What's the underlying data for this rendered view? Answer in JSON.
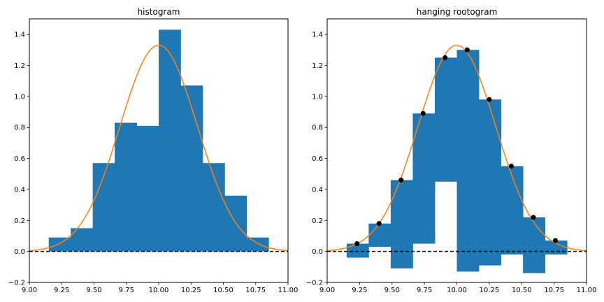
{
  "chart_data": [
    {
      "type": "bar",
      "title": "histogram",
      "xlim": [
        9.0,
        11.0
      ],
      "ylim": [
        -0.2,
        1.5
      ],
      "xticks": [
        9.0,
        9.25,
        9.5,
        9.75,
        10.0,
        10.25,
        10.5,
        10.75,
        11.0
      ],
      "xtick_labels": [
        "9.00",
        "9.25",
        "9.50",
        "9.75",
        "10.00",
        "10.25",
        "10.50",
        "10.75",
        "11.00"
      ],
      "yticks": [
        -0.2,
        0.0,
        0.2,
        0.4,
        0.6,
        0.8,
        1.0,
        1.2,
        1.4
      ],
      "ytick_labels": [
        "−0.2",
        "0.0",
        "0.2",
        "0.4",
        "0.6",
        "0.8",
        "1.0",
        "1.2",
        "1.4"
      ],
      "bin_edges": [
        9.15,
        9.32,
        9.49,
        9.66,
        9.83,
        10.0,
        10.17,
        10.34,
        10.51,
        10.68,
        10.85
      ],
      "values": [
        0.09,
        0.15,
        0.57,
        0.83,
        0.81,
        1.43,
        1.07,
        0.57,
        0.36,
        0.09
      ],
      "bar_color": "#1f77b4",
      "curve": {
        "type": "gaussian",
        "mean": 10.0,
        "std": 0.3,
        "amplitude": 1.33,
        "color": "#ff7f0e"
      },
      "reference_line": {
        "y": 0.0,
        "style": "dashed",
        "color": "#000000"
      }
    },
    {
      "type": "bar",
      "title": "hanging rootogram",
      "xlim": [
        9.0,
        11.0
      ],
      "ylim": [
        -0.2,
        1.5
      ],
      "xticks": [
        9.0,
        9.25,
        9.5,
        9.75,
        10.0,
        10.25,
        10.5,
        10.75,
        11.0
      ],
      "xtick_labels": [
        "9.00",
        "9.25",
        "9.50",
        "9.75",
        "10.00",
        "10.25",
        "10.50",
        "10.75",
        "11.00"
      ],
      "yticks": [
        -0.2,
        0.0,
        0.2,
        0.4,
        0.6,
        0.8,
        1.0,
        1.2,
        1.4
      ],
      "ytick_labels": [
        "−0.2",
        "0.0",
        "0.2",
        "0.4",
        "0.6",
        "0.8",
        "1.0",
        "1.2",
        "1.4"
      ],
      "bin_edges": [
        9.15,
        9.32,
        9.49,
        9.66,
        9.83,
        10.0,
        10.17,
        10.34,
        10.51,
        10.68,
        10.85
      ],
      "bar_tops": [
        0.05,
        0.18,
        0.46,
        0.89,
        1.25,
        1.3,
        0.98,
        0.55,
        0.22,
        0.07
      ],
      "bar_bottoms": [
        -0.04,
        0.03,
        -0.11,
        0.05,
        0.45,
        -0.13,
        -0.09,
        -0.02,
        -0.14,
        -0.02
      ],
      "points": {
        "x": [
          9.23,
          9.4,
          9.57,
          9.74,
          9.91,
          10.08,
          10.25,
          10.42,
          10.59,
          10.76
        ],
        "y": [
          0.05,
          0.18,
          0.46,
          0.89,
          1.25,
          1.3,
          0.98,
          0.55,
          0.22,
          0.07
        ],
        "color": "#000000"
      },
      "bar_color": "#1f77b4",
      "curve": {
        "type": "gaussian",
        "mean": 10.0,
        "std": 0.3,
        "amplitude": 1.33,
        "color": "#ff7f0e"
      },
      "reference_line": {
        "y": 0.0,
        "style": "dashed",
        "color": "#000000"
      }
    }
  ]
}
